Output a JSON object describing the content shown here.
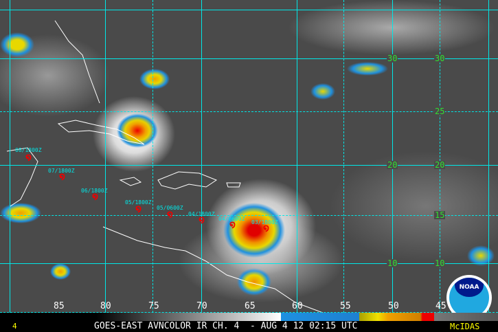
{
  "title_bar": {
    "left_mark": "4",
    "caption": "GOES-EAST AVNCOLOR IR CH. 4  - AUG 4 12 02:15 UTC",
    "brand": "McIDAS"
  },
  "latitude_labels": [
    "30",
    "25",
    "20",
    "15",
    "10"
  ],
  "latitude_labels_inner": [
    "30",
    "20",
    "10"
  ],
  "longitude_labels": [
    "85",
    "80",
    "75",
    "70",
    "65",
    "60",
    "55",
    "50",
    "45"
  ],
  "storm_track": [
    {
      "label": "08/1800Z"
    },
    {
      "label": "07/1800Z"
    },
    {
      "label": "06/1800Z"
    },
    {
      "label": "05/1800Z"
    },
    {
      "label": "05/0600Z"
    },
    {
      "label": "04/1800Z"
    },
    {
      "label": "04/0600Z"
    },
    {
      "label": "03/1800Z"
    }
  ],
  "logo": {
    "text": "NOAA"
  },
  "colors": {
    "grid": "#00e8e8",
    "lat_labels": "#30e030",
    "track_symbol": "#ee0000",
    "brand": "#ffff00"
  },
  "icons": {
    "storm": "tropical-storm-symbol"
  }
}
